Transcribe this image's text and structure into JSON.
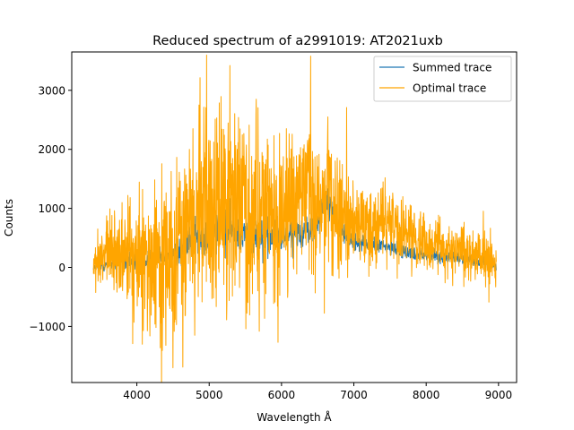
{
  "chart_data": {
    "type": "line",
    "title": "Reduced spectrum of a2991019: AT2021uxb",
    "xlabel": "Wavelength Å",
    "ylabel": "Counts",
    "xlim": [
      3100,
      9250
    ],
    "ylim": [
      -1950,
      3650
    ],
    "xticks": [
      4000,
      5000,
      6000,
      7000,
      8000,
      9000
    ],
    "xtick_labels": [
      "4000",
      "5000",
      "6000",
      "7000",
      "8000",
      "9000"
    ],
    "yticks": [
      -1000,
      0,
      1000,
      2000,
      3000
    ],
    "ytick_labels": [
      "−1000",
      "0",
      "1000",
      "2000",
      "3000"
    ],
    "grid": false,
    "legend_position": "upper right",
    "series": [
      {
        "name": "Summed trace",
        "color": "#1f77b4",
        "x": [
          3400,
          3500,
          3600,
          3700,
          3800,
          3900,
          4000,
          4100,
          4200,
          4300,
          4400,
          4500,
          4600,
          4700,
          4800,
          4900,
          5000,
          5100,
          5200,
          5300,
          5400,
          5500,
          5600,
          5700,
          5800,
          5900,
          6000,
          6100,
          6200,
          6300,
          6400,
          6500,
          6600,
          6650,
          6700,
          6800,
          6900,
          7000,
          7100,
          7200,
          7300,
          7400,
          7500,
          7600,
          7700,
          7800,
          7900,
          8000,
          8100,
          8200,
          8300,
          8400,
          8500,
          8600,
          8700,
          8800,
          8900,
          8970
        ],
        "y": [
          0,
          20,
          60,
          80,
          100,
          100,
          120,
          150,
          150,
          180,
          180,
          220,
          300,
          420,
          480,
          520,
          600,
          620,
          640,
          660,
          600,
          580,
          560,
          520,
          480,
          500,
          520,
          560,
          580,
          620,
          640,
          800,
          1150,
          1100,
          950,
          700,
          520,
          450,
          420,
          400,
          380,
          360,
          330,
          300,
          280,
          250,
          230,
          220,
          200,
          180,
          170,
          160,
          150,
          140,
          120,
          100,
          80,
          40
        ],
        "noise": [
          20,
          40,
          60,
          60,
          60,
          60,
          70,
          70,
          80,
          80,
          90,
          100,
          110,
          120,
          130,
          140,
          140,
          140,
          140,
          140,
          140,
          140,
          130,
          130,
          120,
          120,
          120,
          120,
          120,
          120,
          120,
          120,
          110,
          110,
          100,
          90,
          80,
          70,
          60,
          60,
          60,
          55,
          55,
          50,
          50,
          50,
          50,
          50,
          50,
          50,
          50,
          50,
          50,
          50,
          50,
          50,
          50,
          50
        ]
      },
      {
        "name": "Optimal trace",
        "color": "#ffa500",
        "x": [
          3400,
          3500,
          3600,
          3700,
          3800,
          3900,
          4000,
          4100,
          4200,
          4300,
          4400,
          4500,
          4600,
          4700,
          4800,
          4900,
          5000,
          5100,
          5200,
          5300,
          5400,
          5500,
          5600,
          5700,
          5800,
          5900,
          6000,
          6100,
          6200,
          6300,
          6400,
          6500,
          6600,
          6650,
          6700,
          6800,
          6900,
          7000,
          7100,
          7200,
          7300,
          7400,
          7500,
          7600,
          7700,
          7800,
          7900,
          8000,
          8100,
          8200,
          8300,
          8400,
          8500,
          8600,
          8700,
          8800,
          8900,
          8970
        ],
        "y": [
          0,
          100,
          250,
          300,
          200,
          150,
          100,
          100,
          100,
          150,
          200,
          250,
          400,
          700,
          900,
          950,
          1050,
          1100,
          1150,
          1150,
          1050,
          1000,
          950,
          900,
          850,
          900,
          950,
          1000,
          1050,
          1100,
          1150,
          1250,
          1300,
          1300,
          1150,
          900,
          750,
          700,
          700,
          700,
          700,
          700,
          700,
          650,
          600,
          550,
          500,
          450,
          400,
          350,
          300,
          280,
          250,
          220,
          200,
          150,
          100,
          50
        ],
        "noise": [
          150,
          250,
          300,
          350,
          400,
          400,
          450,
          500,
          550,
          600,
          650,
          650,
          650,
          650,
          700,
          700,
          700,
          750,
          800,
          800,
          800,
          750,
          700,
          700,
          650,
          600,
          600,
          600,
          550,
          550,
          550,
          550,
          550,
          550,
          500,
          450,
          400,
          350,
          300,
          300,
          300,
          300,
          300,
          280,
          250,
          250,
          250,
          250,
          230,
          220,
          200,
          200,
          200,
          200,
          200,
          200,
          200,
          200
        ],
        "peaks": [
          {
            "x": 5285,
            "y": 3420
          },
          {
            "x": 4860,
            "y": 2750
          },
          {
            "x": 5650,
            "y": 2850
          },
          {
            "x": 6640,
            "y": 2550
          },
          {
            "x": 4775,
            "y": 2350
          },
          {
            "x": 4500,
            "y": -1700
          },
          {
            "x": 4400,
            "y": -1320
          },
          {
            "x": 4800,
            "y": -1150
          },
          {
            "x": 3900,
            "y": 1030
          },
          {
            "x": 3460,
            "y": 650
          },
          {
            "x": 8960,
            "y": -330
          }
        ]
      }
    ]
  }
}
